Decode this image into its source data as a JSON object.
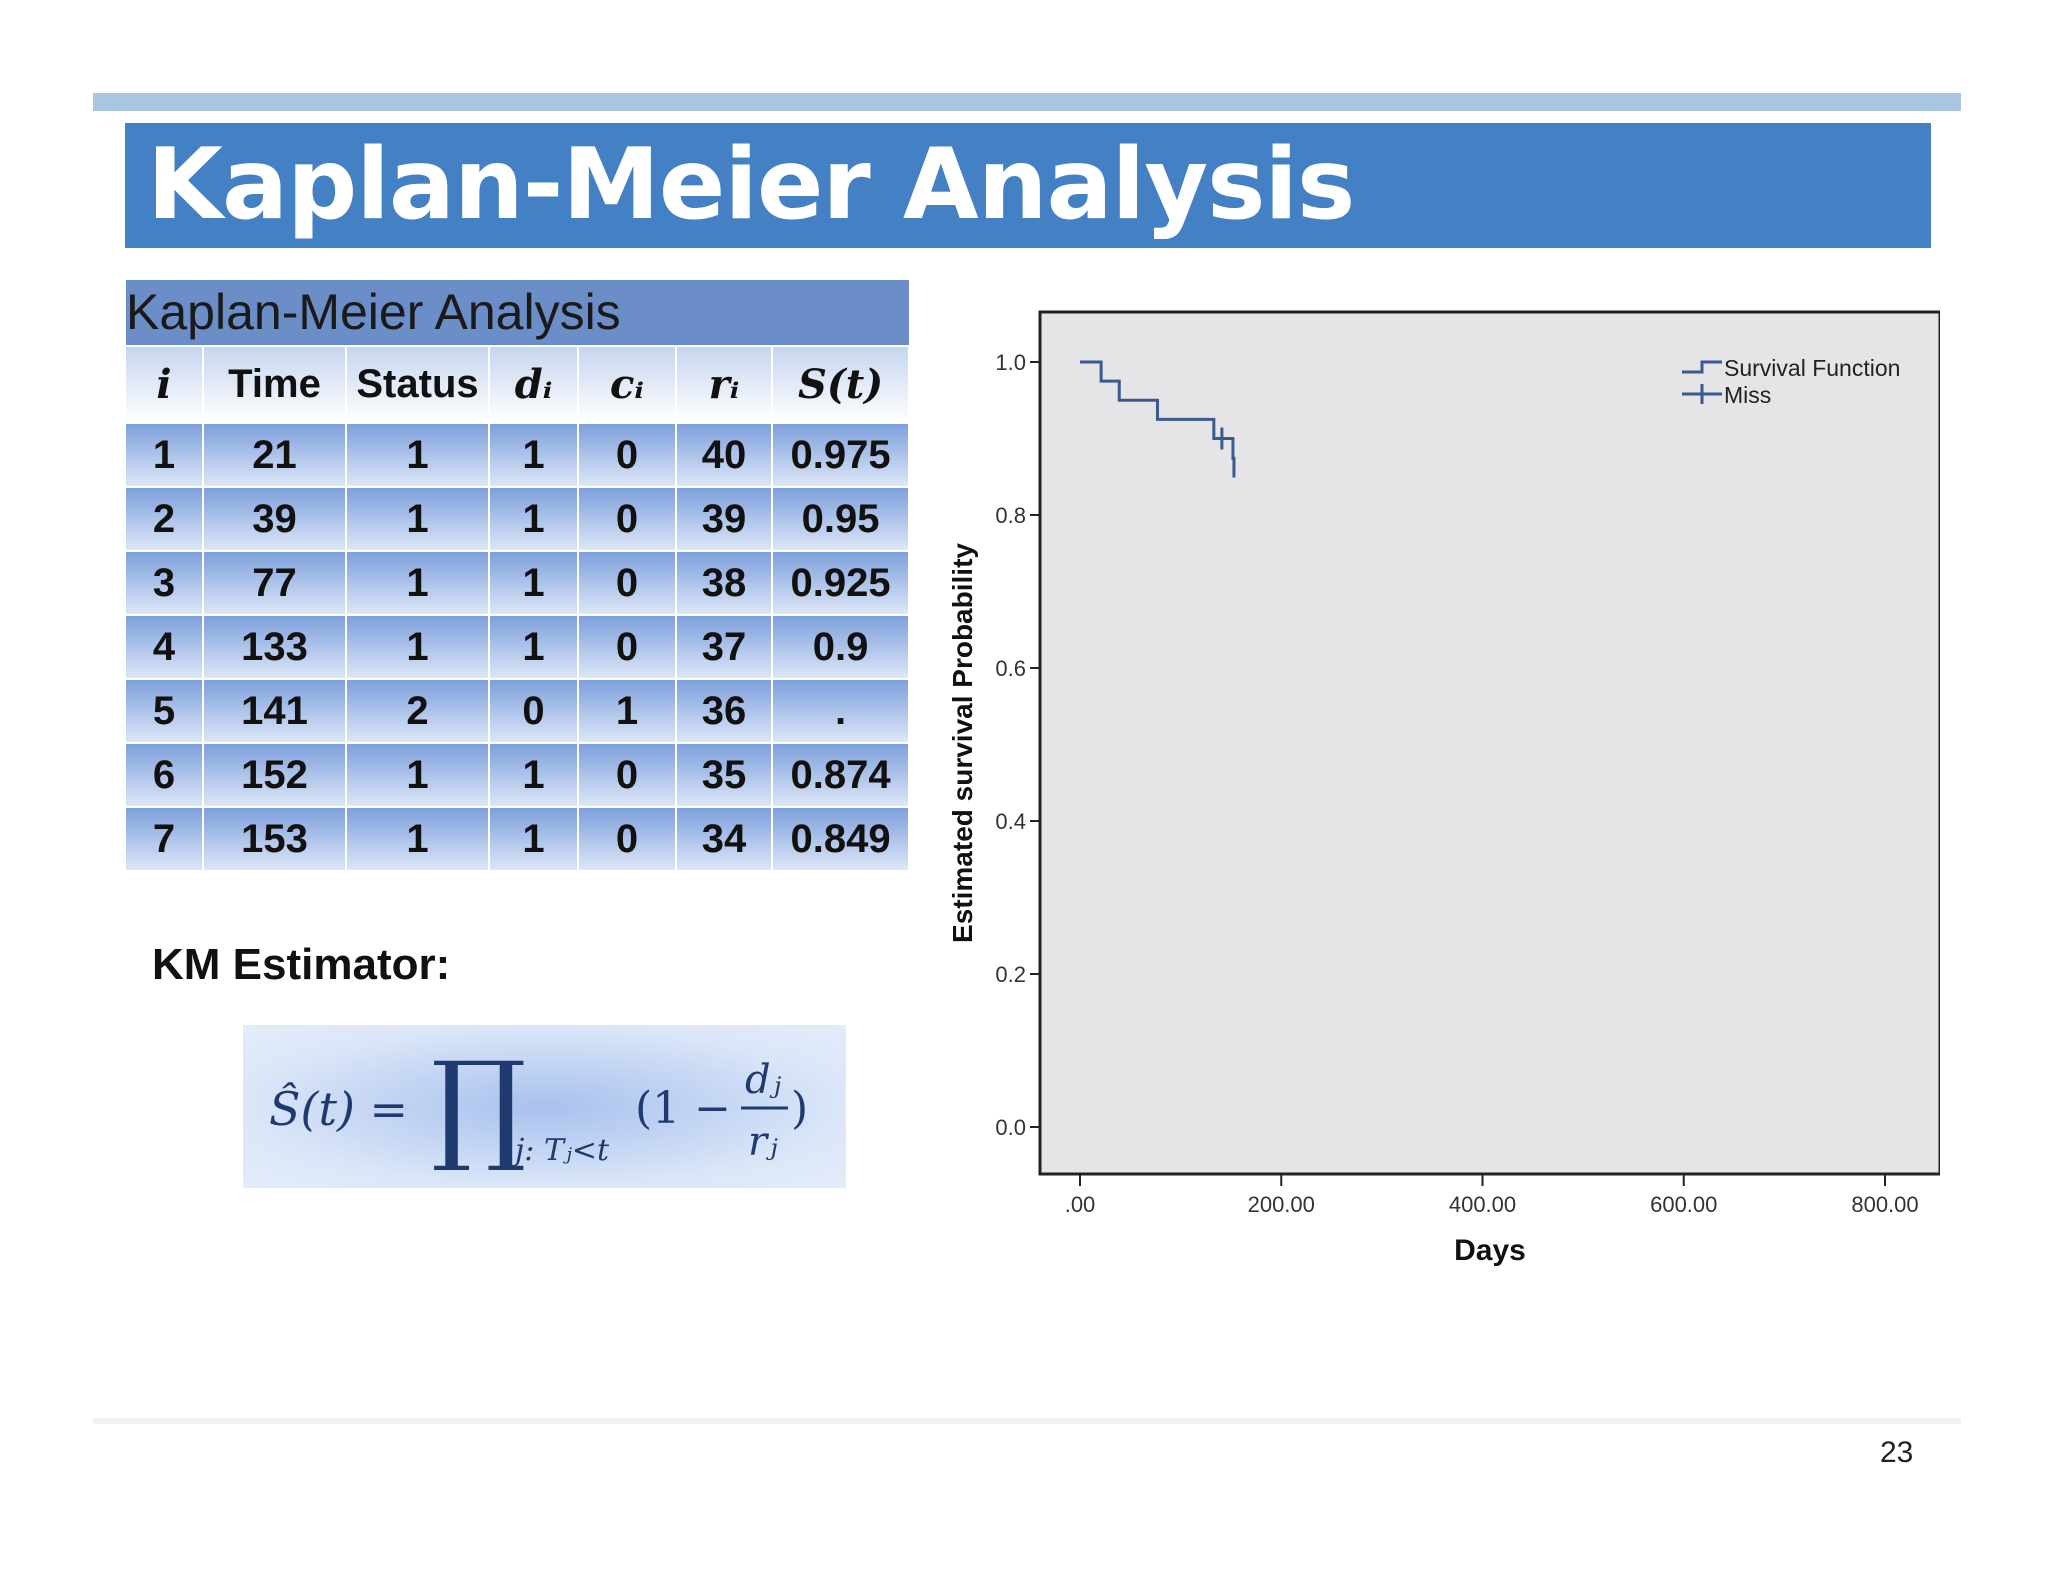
{
  "slide": {
    "title": "Kaplan-Meier Analysis",
    "estimator_label": "KM Estimator:",
    "page_number": "23"
  },
  "table": {
    "caption": "Kaplan-Meier Analysis",
    "headers": [
      "i",
      "Time",
      "Status",
      "dᵢ",
      "cᵢ",
      "rᵢ",
      "S(t)"
    ],
    "rows": [
      [
        "1",
        "21",
        "1",
        "1",
        "0",
        "40",
        "0.975"
      ],
      [
        "2",
        "39",
        "1",
        "1",
        "0",
        "39",
        "0.95"
      ],
      [
        "3",
        "77",
        "1",
        "1",
        "0",
        "38",
        "0.925"
      ],
      [
        "4",
        "133",
        "1",
        "1",
        "0",
        "37",
        "0.9"
      ],
      [
        "5",
        "141",
        "2",
        "0",
        "1",
        "36",
        "."
      ],
      [
        "6",
        "152",
        "1",
        "1",
        "0",
        "35",
        "0.874"
      ],
      [
        "7",
        "153",
        "1",
        "1",
        "0",
        "34",
        "0.849"
      ]
    ]
  },
  "formula": {
    "lhs": "Ŝ(t) =",
    "product": "∏",
    "subscript": "j: Tⱼ<t",
    "open": "(1 −",
    "numerator": "dⱼ",
    "denominator": "rⱼ",
    "close": ")"
  },
  "chart_data": {
    "type": "line",
    "step": true,
    "xlabel": "Days",
    "ylabel": "Estimated survival Probability",
    "xlim": [
      0,
      800
    ],
    "ylim": [
      0,
      1.0
    ],
    "x_ticks": [
      ".00",
      "200.00",
      "400.00",
      "600.00",
      "800.00"
    ],
    "x_tick_values": [
      0,
      200,
      400,
      600,
      800
    ],
    "y_ticks": [
      "0.0",
      "0.2",
      "0.4",
      "0.6",
      "0.8",
      "1.0"
    ],
    "y_tick_values": [
      0,
      0.2,
      0.4,
      0.6,
      0.8,
      1.0
    ],
    "legend": {
      "placement": "top-right",
      "entries": [
        "Survival Function",
        "Miss"
      ]
    },
    "series": [
      {
        "name": "Survival Function",
        "x": [
          0,
          21,
          39,
          77,
          133,
          152,
          153
        ],
        "y": [
          1.0,
          0.975,
          0.95,
          0.925,
          0.9,
          0.874,
          0.849
        ]
      }
    ],
    "censored": [
      {
        "x": 141,
        "y": 0.9
      }
    ],
    "colors": {
      "line": "#3b5a8e",
      "plot_bg": "#e5e5e8"
    }
  }
}
